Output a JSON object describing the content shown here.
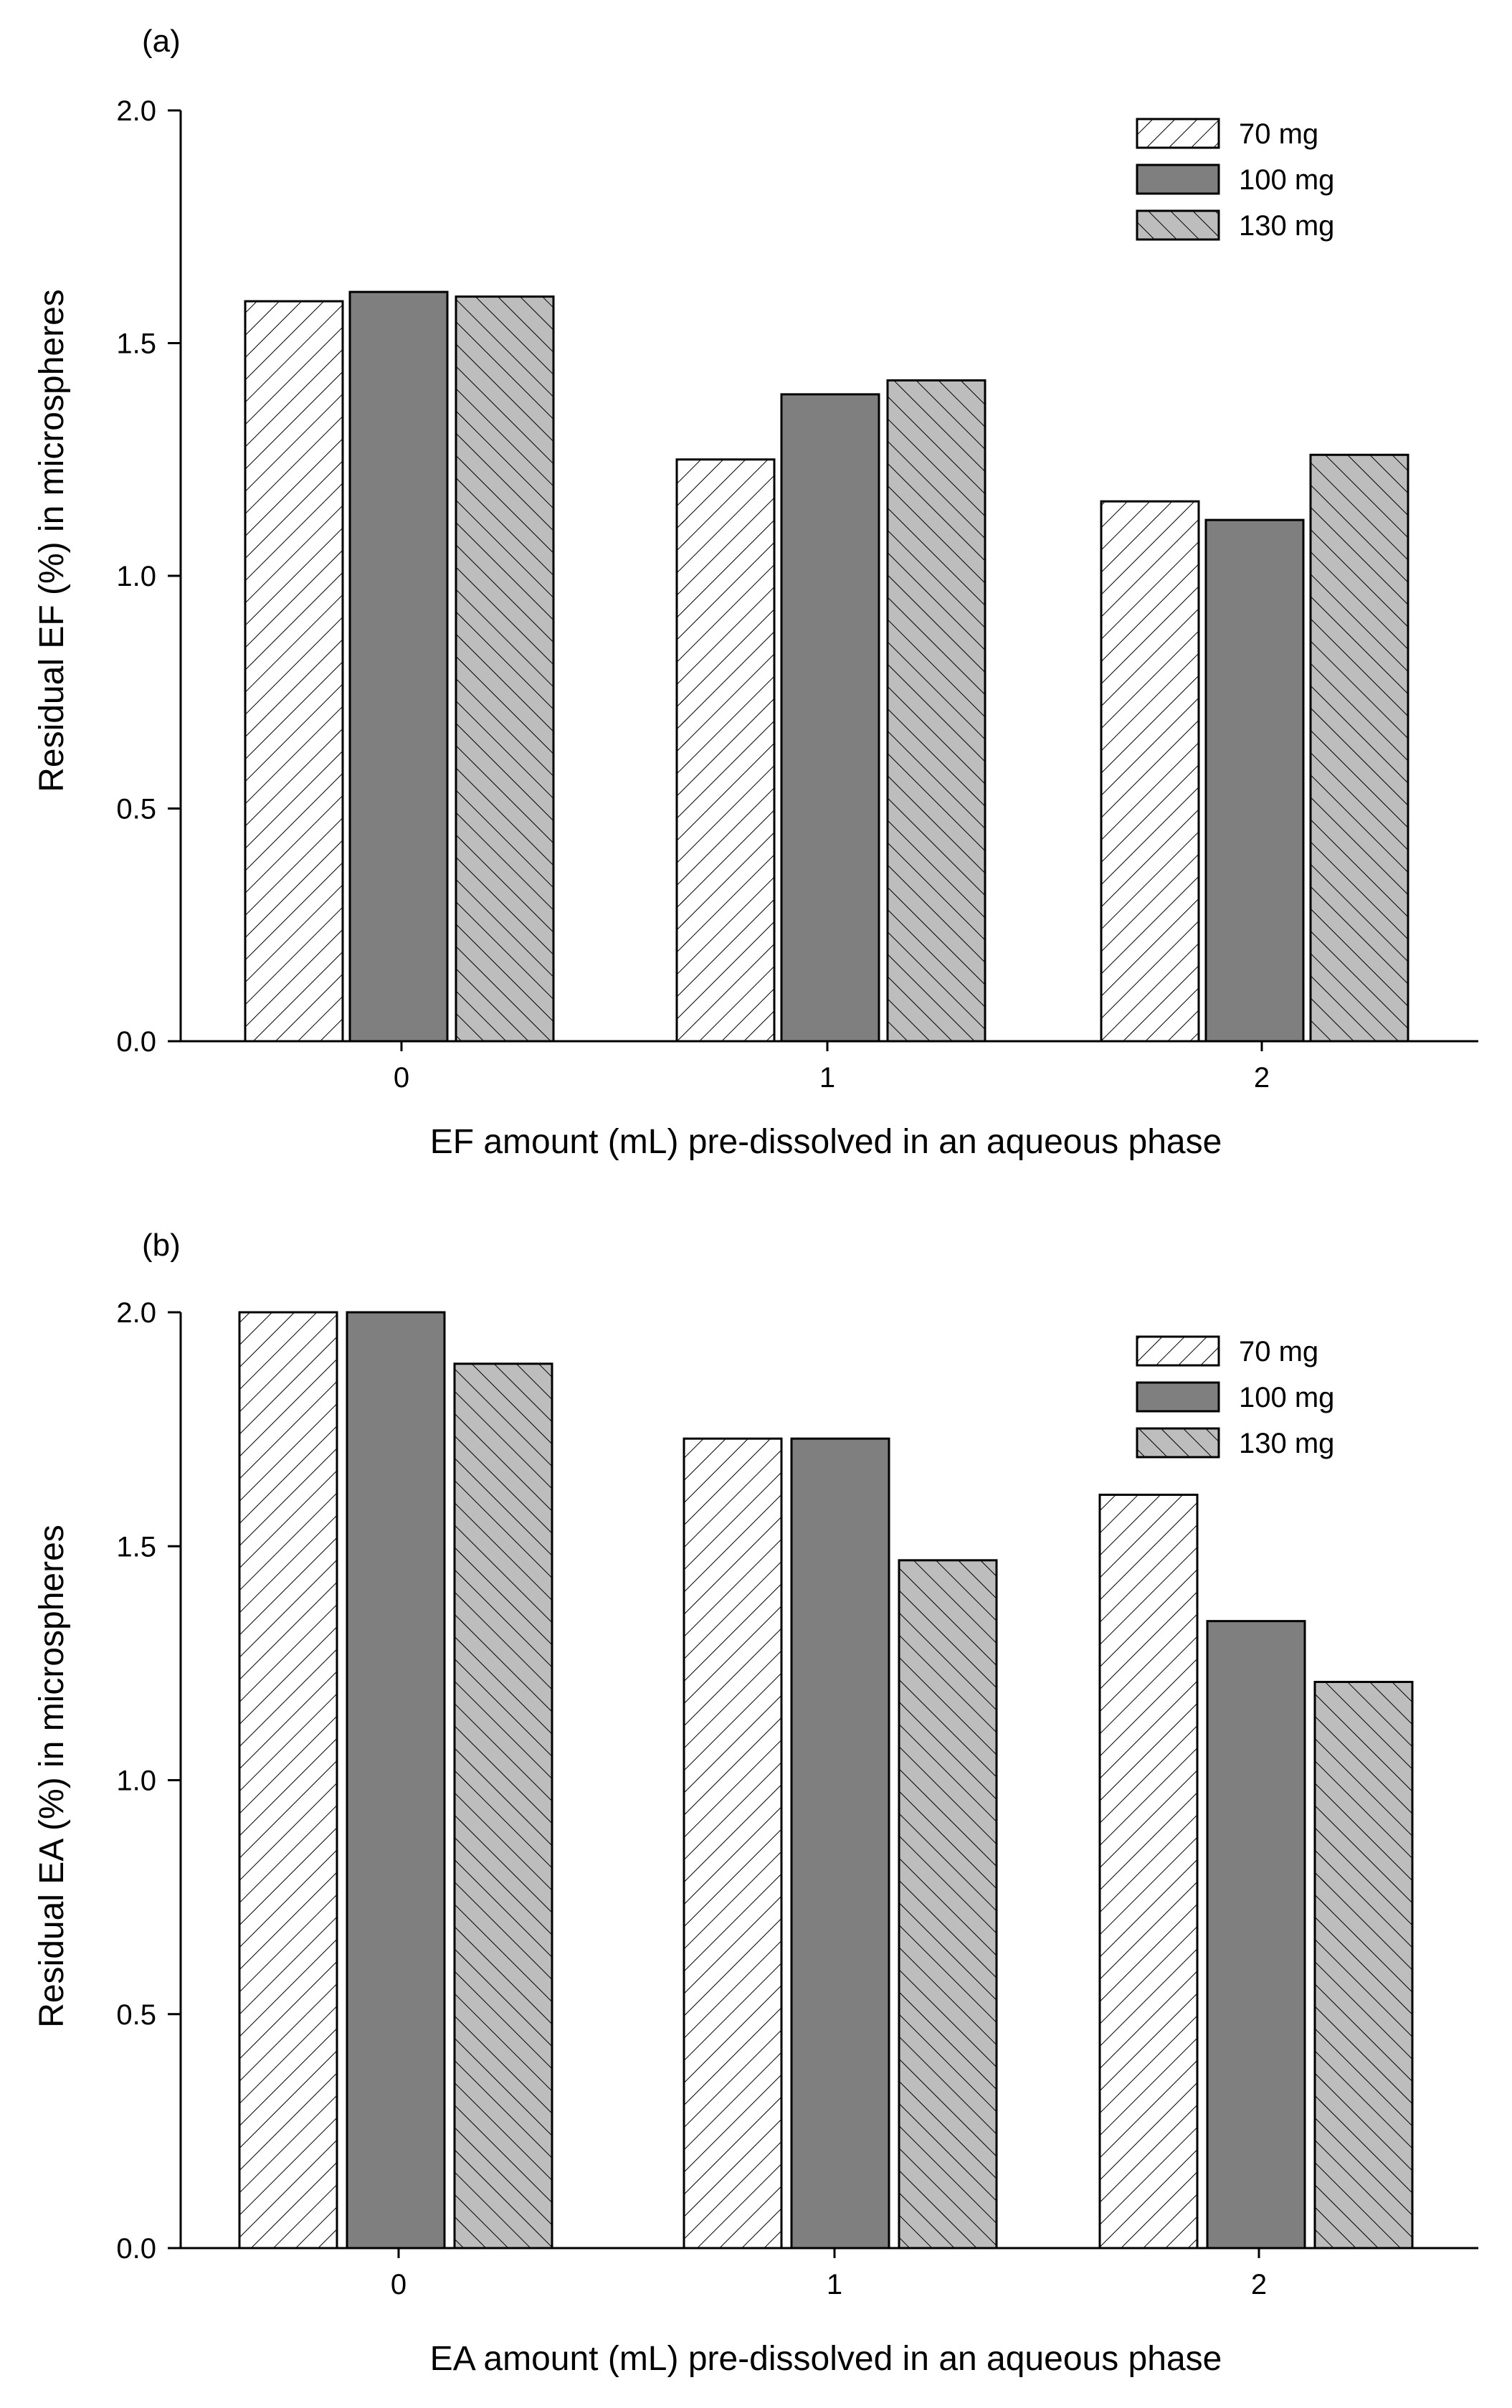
{
  "chart_data": [
    {
      "panel_label": "(a)",
      "type": "bar",
      "categories": [
        "0",
        "1",
        "2"
      ],
      "series": [
        {
          "name": "70 mg",
          "values": [
            1.59,
            1.25,
            1.16
          ]
        },
        {
          "name": "100 mg",
          "values": [
            1.61,
            1.39,
            1.12
          ]
        },
        {
          "name": "130 mg",
          "values": [
            1.6,
            1.42,
            1.26
          ]
        }
      ],
      "xlabel": "EF amount (mL) pre-dissolved in an aqueous phase",
      "ylabel": "Residual EF (%) in microspheres",
      "ylim": [
        0,
        2.0
      ],
      "yticks": [
        "0.0",
        "0.5",
        "1.0",
        "1.5",
        "2.0"
      ],
      "legend_position": "top-right"
    },
    {
      "panel_label": "(b)",
      "type": "bar",
      "categories": [
        "0",
        "1",
        "2"
      ],
      "series": [
        {
          "name": "70 mg",
          "values": [
            2.0,
            1.73,
            1.61
          ]
        },
        {
          "name": "100 mg",
          "values": [
            2.0,
            1.73,
            1.34
          ]
        },
        {
          "name": "130 mg",
          "values": [
            1.89,
            1.47,
            1.21
          ]
        }
      ],
      "xlabel": "EA amount (mL) pre-dissolved in an aqueous phase",
      "ylabel": "Residual EA (%) in microspheres",
      "ylim": [
        0,
        2.0
      ],
      "yticks": [
        "0.0",
        "0.5",
        "1.0",
        "1.5",
        "2.0"
      ],
      "legend_position": "top-right"
    }
  ],
  "series_styles": [
    {
      "fill": "#ffffff",
      "pattern": "hatch-forward"
    },
    {
      "fill": "#7f7f7f",
      "pattern": "none"
    },
    {
      "fill": "#bdbdbd",
      "pattern": "hatch-back"
    }
  ]
}
